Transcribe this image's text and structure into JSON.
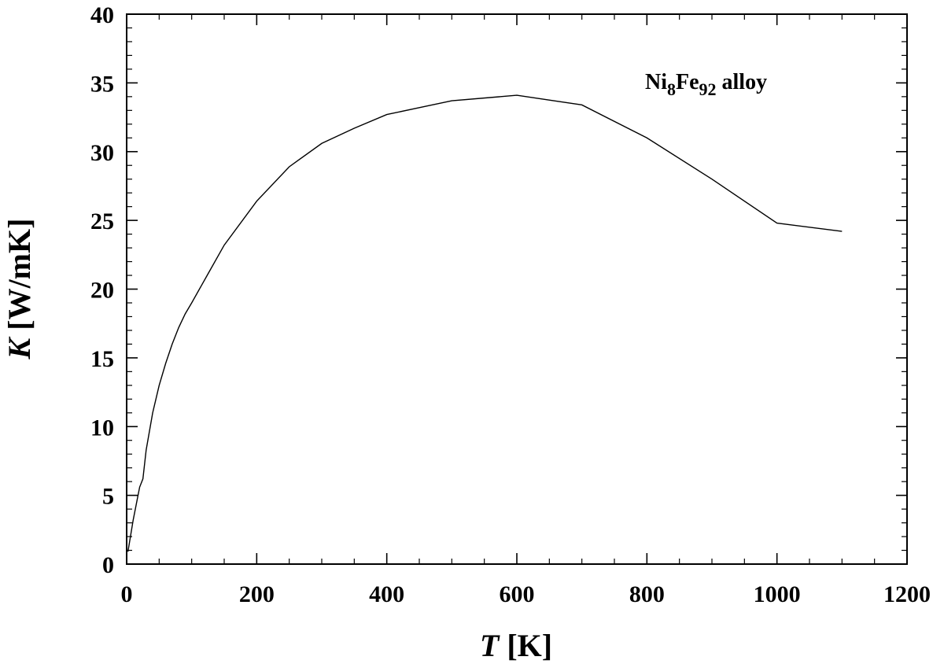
{
  "chart_data": {
    "type": "line",
    "xlabel": {
      "symbol": "T",
      "unit": "[K]"
    },
    "ylabel": {
      "symbol": "K",
      "unit": "[W/mK]"
    },
    "xlim": [
      0,
      1200
    ],
    "ylim": [
      0,
      40
    ],
    "x_ticks": [
      0,
      200,
      400,
      600,
      800,
      1000,
      1200
    ],
    "y_ticks": [
      0,
      5,
      10,
      15,
      20,
      25,
      30,
      35,
      40
    ],
    "x_minor_step": 50,
    "y_minor_step": 1,
    "grid": false,
    "annotation": {
      "base1": "Ni",
      "sub1": "8",
      "base2": "Fe",
      "sub2": "92",
      "suffix": " alloy"
    },
    "series": [
      {
        "x": [
          2,
          10,
          20,
          25,
          30,
          40,
          50,
          60,
          70,
          80,
          90,
          100,
          125,
          150,
          200,
          250,
          300,
          350,
          400,
          450,
          500,
          600,
          700,
          800,
          900,
          1000,
          1100
        ],
        "y": [
          0.9,
          3.2,
          5.6,
          6.2,
          8.3,
          11.0,
          13.0,
          14.6,
          16.0,
          17.2,
          18.2,
          19.0,
          21.1,
          23.2,
          26.4,
          28.9,
          30.6,
          31.7,
          32.7,
          33.2,
          33.7,
          34.1,
          33.4,
          31.0,
          28.0,
          24.8,
          24.2
        ]
      }
    ]
  }
}
